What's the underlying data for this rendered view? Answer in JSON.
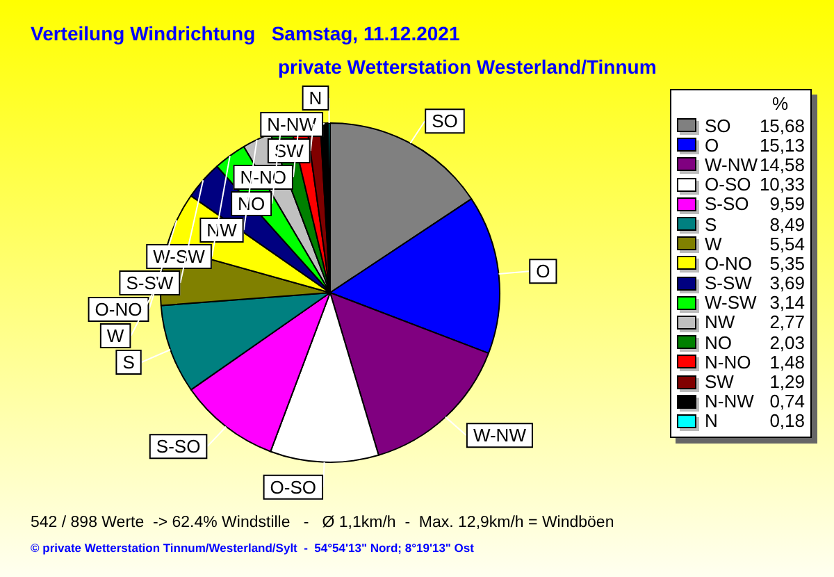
{
  "chart_data": {
    "type": "pie",
    "title": "Verteilung Windrichtung   Samstag, 11.12.2021",
    "subtitle": "private Wetterstation Westerland/Tinnum",
    "categories": [
      "SO",
      "O",
      "W-NW",
      "O-SO",
      "S-SO",
      "S",
      "W",
      "O-NO",
      "S-SW",
      "W-SW",
      "NW",
      "NO",
      "N-NO",
      "SW",
      "N-NW",
      "N"
    ],
    "values": [
      15.68,
      15.13,
      14.58,
      10.33,
      9.59,
      8.49,
      5.54,
      5.35,
      3.69,
      3.14,
      2.77,
      2.03,
      1.48,
      1.29,
      0.74,
      0.18
    ],
    "colors": [
      "#808080",
      "#0000ff",
      "#800080",
      "#ffffff",
      "#ff00ff",
      "#008080",
      "#808000",
      "#ffff00",
      "#000080",
      "#00ff00",
      "#c0c0c0",
      "#008000",
      "#ff0000",
      "#800000",
      "#000000",
      "#00ffff"
    ],
    "value_labels": [
      "15,68",
      "15,13",
      "14,58",
      "10,33",
      "9,59",
      "8,49",
      "5,54",
      "5,35",
      "3,69",
      "3,14",
      "2,77",
      "2,03",
      "1,48",
      "1,29",
      "0,74",
      "0,18"
    ],
    "legend": "right",
    "legend_title": "%",
    "annotations": [
      "542 / 898 Werte  -> 62.4% Windstille   -   Ø 1,1km/h  -  Max. 12,9km/h = Windböen",
      "© private Wetterstation Tinnum/Westerland/Sylt  -  54°54'13\" Nord; 8°19'13\" Ost"
    ]
  }
}
